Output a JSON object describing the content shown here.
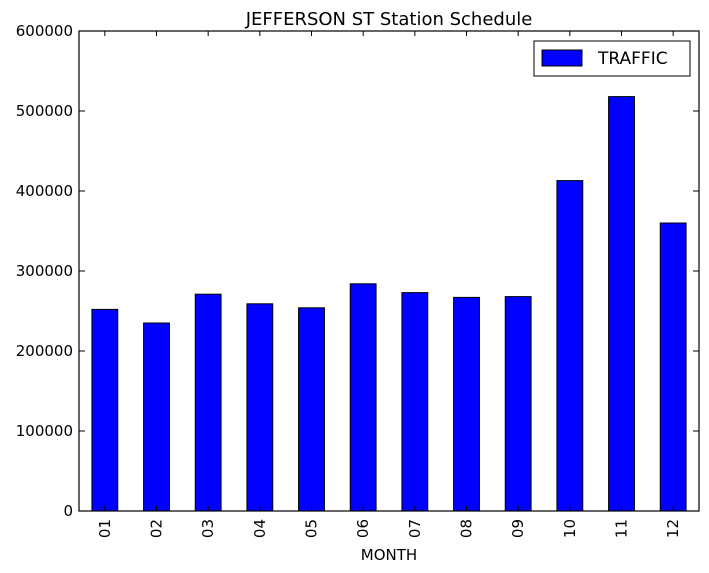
{
  "chart_data": {
    "type": "bar",
    "title": "JEFFERSON ST Station Schedule",
    "xlabel": "MONTH",
    "ylabel": "",
    "categories": [
      "01",
      "02",
      "03",
      "04",
      "05",
      "06",
      "07",
      "08",
      "09",
      "10",
      "11",
      "12"
    ],
    "series": [
      {
        "name": "TRAFFIC",
        "color": "#0000ff",
        "values": [
          252000,
          235000,
          271000,
          259000,
          254000,
          284000,
          273000,
          267000,
          268000,
          413000,
          518000,
          360000
        ]
      }
    ],
    "ylim": [
      0,
      600000
    ],
    "yticks": [
      "0",
      "100000",
      "200000",
      "300000",
      "400000",
      "500000",
      "600000"
    ],
    "yticks_values": [
      0,
      100000,
      200000,
      300000,
      400000,
      500000,
      600000
    ],
    "grid": false,
    "legend_position": "top-right"
  }
}
